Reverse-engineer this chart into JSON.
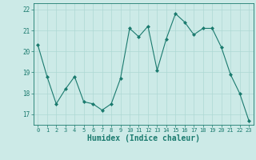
{
  "x": [
    0,
    1,
    2,
    3,
    4,
    5,
    6,
    7,
    8,
    9,
    10,
    11,
    12,
    13,
    14,
    15,
    16,
    17,
    18,
    19,
    20,
    21,
    22,
    23
  ],
  "y": [
    20.3,
    18.8,
    17.5,
    18.2,
    18.8,
    17.6,
    17.5,
    17.2,
    17.5,
    18.7,
    21.1,
    20.7,
    21.2,
    19.1,
    20.6,
    21.8,
    21.4,
    20.8,
    21.1,
    21.1,
    20.2,
    18.9,
    18.0,
    16.7
  ],
  "line_color": "#1a7a6e",
  "marker": "D",
  "marker_size": 2.0,
  "bg_color": "#cceae7",
  "grid_color": "#aed8d4",
  "tick_color": "#1a7a6e",
  "xlabel": "Humidex (Indice chaleur)",
  "xlabel_fontsize": 7,
  "xlim": [
    -0.5,
    23.5
  ],
  "ylim": [
    16.5,
    22.3
  ],
  "yticks": [
    17,
    18,
    19,
    20,
    21,
    22
  ],
  "xtick_labels": [
    "0",
    "1",
    "2",
    "3",
    "4",
    "5",
    "6",
    "7",
    "8",
    "9",
    "10",
    "11",
    "12",
    "13",
    "14",
    "15",
    "16",
    "17",
    "18",
    "19",
    "20",
    "21",
    "22",
    "23"
  ],
  "spine_color": "#1a7a6e",
  "linewidth": 0.8
}
